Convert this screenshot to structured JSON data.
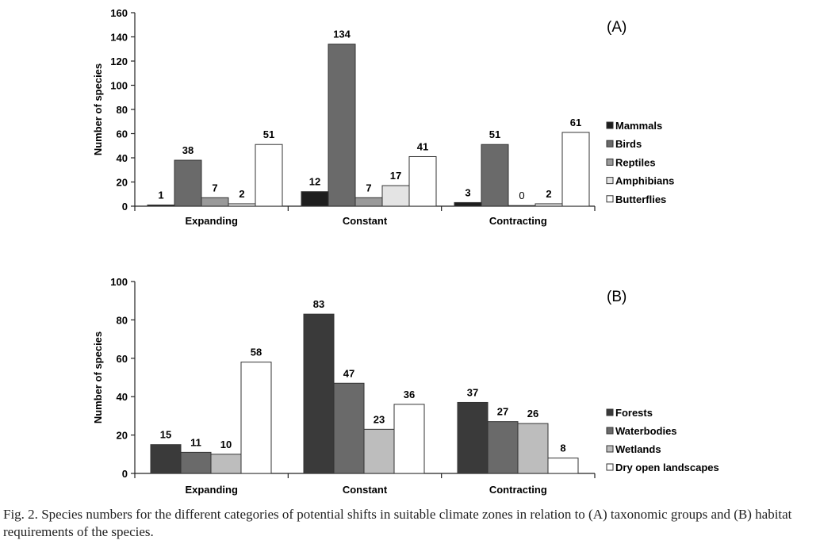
{
  "chart_data": [
    {
      "type": "bar",
      "panel_label": "(A)",
      "ylabel": "Number of species",
      "ylim": [
        0,
        160
      ],
      "yticks": [
        0,
        20,
        40,
        60,
        80,
        100,
        120,
        140,
        160
      ],
      "categories": [
        "Expanding",
        "Constant",
        "Contracting"
      ],
      "series": [
        {
          "name": "Mammals",
          "values": [
            1,
            12,
            3
          ],
          "color": "#1e1e1e"
        },
        {
          "name": "Birds",
          "values": [
            38,
            134,
            51
          ],
          "color": "#6a6a6a"
        },
        {
          "name": "Reptiles",
          "values": [
            7,
            7,
            0
          ],
          "color": "#9a9a9a"
        },
        {
          "name": "Amphibians",
          "values": [
            2,
            17,
            2
          ],
          "color": "#e4e4e4"
        },
        {
          "name": "Butterflies",
          "values": [
            51,
            41,
            61
          ],
          "color": "#ffffff"
        }
      ],
      "legend": "right",
      "grid": false
    },
    {
      "type": "bar",
      "panel_label": "(B)",
      "ylabel": "Number of species",
      "ylim": [
        0,
        100
      ],
      "yticks": [
        0,
        20,
        40,
        60,
        80,
        100
      ],
      "categories": [
        "Expanding",
        "Constant",
        "Contracting"
      ],
      "series": [
        {
          "name": "Forests",
          "values": [
            15,
            83,
            37
          ],
          "color": "#3a3a3a"
        },
        {
          "name": "Waterbodies",
          "values": [
            11,
            47,
            27
          ],
          "color": "#6a6a6a"
        },
        {
          "name": "Wetlands",
          "values": [
            10,
            23,
            26
          ],
          "color": "#bdbdbd"
        },
        {
          "name": "Dry open landscapes",
          "values": [
            58,
            36,
            8
          ],
          "color": "#ffffff"
        }
      ],
      "legend": "right",
      "grid": false
    }
  ],
  "caption": {
    "label": "Fig. 2.",
    "text": "Species numbers for the different categories of potential shifts in suitable climate zones in relation to (A) taxonomic groups and (B) habitat requirements of the species."
  }
}
